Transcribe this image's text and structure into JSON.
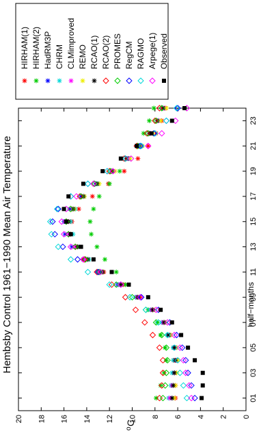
{
  "chart_data": {
    "type": "scatter",
    "title": "Hembsby Control 1961−1990 Mean Air Temperature",
    "xlabel": "half−months",
    "ylabel": "oC",
    "xlim": [
      0,
      24
    ],
    "ylim": [
      0,
      20
    ],
    "x_ticks": [
      1,
      3,
      5,
      7,
      9,
      11,
      13,
      15,
      17,
      19,
      21,
      23
    ],
    "x_tick_labels": [
      "01",
      "03",
      "05",
      "07",
      "09",
      "11",
      "13",
      "15",
      "17",
      "19",
      "21",
      "23"
    ],
    "y_ticks": [
      0,
      2,
      4,
      6,
      8,
      10,
      12,
      14,
      16,
      18,
      20
    ],
    "y_tick_labels": [
      "0",
      "2",
      "4",
      "6",
      "8",
      "10",
      "12",
      "14",
      "16",
      "18",
      "20"
    ],
    "orientation": "rotated 90 degrees counter-clockwise",
    "grid": false,
    "legend_position": "top-right",
    "x": [
      1,
      2,
      3,
      4,
      5,
      6,
      7,
      8,
      9,
      10,
      11,
      12,
      13,
      14,
      15,
      16,
      17,
      18,
      19,
      20,
      21,
      22,
      23,
      24
    ],
    "series": [
      {
        "name": "HIRHAM(1)",
        "marker": "star",
        "color": "#ff0000",
        "values": [
          6.2,
          6.2,
          6.3,
          6.3,
          6.4,
          6.9,
          7.2,
          8.2,
          9.3,
          10.8,
          12.5,
          13.9,
          14.9,
          15.4,
          15.3,
          14.7,
          13.5,
          12.1,
          10.7,
          9.5,
          8.6,
          7.9,
          7.4,
          7.1
        ]
      },
      {
        "name": "HIRHAM(2)",
        "marker": "star",
        "color": "#00cc00",
        "values": [
          7.9,
          7.5,
          7.2,
          7.0,
          7.1,
          7.5,
          7.8,
          8.6,
          9.5,
          10.6,
          11.4,
          12.4,
          13.1,
          13.6,
          13.7,
          13.4,
          12.9,
          12.0,
          11.1,
          10.3,
          9.6,
          9.0,
          8.5,
          8.1
        ]
      },
      {
        "name": "HadRM3P",
        "marker": "star",
        "color": "#0000ff",
        "values": [
          6.5,
          6.4,
          6.3,
          6.1,
          6.2,
          6.7,
          7.2,
          8.2,
          9.6,
          11.3,
          13.0,
          14.3,
          15.3,
          15.9,
          16.0,
          15.5,
          14.5,
          13.2,
          11.7,
          10.3,
          9.2,
          8.4,
          7.7,
          7.2
        ]
      },
      {
        "name": "CHRM",
        "marker": "star",
        "color": "#00d8d8",
        "values": [
          6.8,
          6.6,
          6.5,
          6.4,
          6.4,
          6.9,
          7.4,
          8.4,
          9.7,
          11.2,
          12.7,
          13.8,
          14.7,
          15.2,
          15.4,
          15.0,
          14.2,
          13.0,
          11.7,
          10.4,
          9.3,
          8.4,
          7.7,
          7.2
        ]
      },
      {
        "name": "CLMimproved",
        "marker": "star",
        "color": "#ff00ff",
        "values": [
          6.7,
          6.5,
          6.3,
          6.2,
          6.3,
          6.8,
          7.3,
          8.3,
          9.6,
          11.1,
          12.8,
          14.1,
          15.0,
          15.6,
          15.7,
          15.2,
          14.3,
          13.1,
          11.7,
          10.4,
          9.3,
          8.4,
          7.7,
          7.2
        ]
      },
      {
        "name": "REMO",
        "marker": "star",
        "color": "#eeee00",
        "values": [
          6.3,
          6.2,
          6.1,
          6.0,
          6.1,
          6.6,
          7.1,
          8.1,
          9.5,
          11.0,
          12.6,
          13.9,
          14.8,
          15.4,
          15.6,
          15.1,
          14.2,
          12.9,
          11.5,
          10.2,
          9.1,
          8.2,
          7.5,
          7.0
        ]
      },
      {
        "name": "RCAO(1)",
        "marker": "star",
        "color": "#000000",
        "values": [
          6.5,
          6.4,
          6.3,
          6.2,
          6.3,
          6.8,
          7.2,
          8.2,
          9.5,
          11.0,
          12.6,
          13.9,
          14.8,
          15.4,
          15.6,
          15.2,
          14.3,
          13.1,
          11.8,
          10.5,
          9.4,
          8.5,
          7.8,
          7.3
        ]
      },
      {
        "name": "RCAO(2)",
        "marker": "diamond",
        "color": "#ff0000",
        "values": [
          7.6,
          7.4,
          7.3,
          7.3,
          7.6,
          8.2,
          8.9,
          9.7,
          10.6,
          11.8,
          13.1,
          14.2,
          15.0,
          15.6,
          15.8,
          15.4,
          14.6,
          13.4,
          12.0,
          10.7,
          9.6,
          8.7,
          8.0,
          7.6
        ]
      },
      {
        "name": "PROMES",
        "marker": "diamond",
        "color": "#00cc00",
        "values": [
          7.3,
          7.1,
          7.0,
          6.9,
          7.0,
          7.4,
          7.9,
          8.8,
          10.0,
          11.4,
          12.9,
          14.1,
          15.0,
          15.6,
          15.8,
          15.4,
          14.5,
          13.3,
          11.9,
          10.6,
          9.5,
          8.6,
          7.9,
          7.4
        ]
      },
      {
        "name": "RegCM",
        "marker": "diamond",
        "color": "#0000ff",
        "values": [
          4.5,
          4.8,
          5.1,
          5.3,
          5.6,
          6.1,
          6.7,
          7.7,
          9.2,
          11.0,
          13.0,
          14.8,
          16.1,
          16.8,
          17.0,
          16.5,
          15.4,
          13.9,
          12.2,
          10.6,
          9.3,
          8.1,
          7.0,
          6.0
        ]
      },
      {
        "name": "RAGMO",
        "marker": "diamond",
        "color": "#00d8d8",
        "values": [
          5.2,
          5.5,
          5.8,
          6.0,
          6.3,
          6.9,
          7.7,
          8.8,
          10.2,
          12.0,
          13.9,
          15.4,
          16.5,
          17.1,
          17.2,
          16.6,
          15.4,
          13.9,
          12.2,
          10.6,
          9.2,
          8.0,
          7.0,
          6.1
        ]
      },
      {
        "name": "Arpege(1)",
        "marker": "diamond",
        "color": "#ff00ff",
        "values": [
          4.8,
          5.0,
          5.3,
          5.5,
          5.8,
          6.3,
          6.9,
          7.9,
          9.3,
          11.0,
          12.8,
          14.3,
          15.4,
          16.0,
          16.2,
          15.8,
          14.9,
          13.4,
          11.7,
          10.1,
          8.6,
          7.4,
          6.2,
          5.2
        ]
      },
      {
        "name": "Observed",
        "marker": "square",
        "color": "#000000",
        "values": [
          3.9,
          3.8,
          3.8,
          4.5,
          5.1,
          5.7,
          6.5,
          7.5,
          8.6,
          10.3,
          11.8,
          13.4,
          14.5,
          15.4,
          15.8,
          16.0,
          15.6,
          14.3,
          12.6,
          11.0,
          9.6,
          8.3,
          6.5,
          5.4
        ]
      }
    ]
  }
}
